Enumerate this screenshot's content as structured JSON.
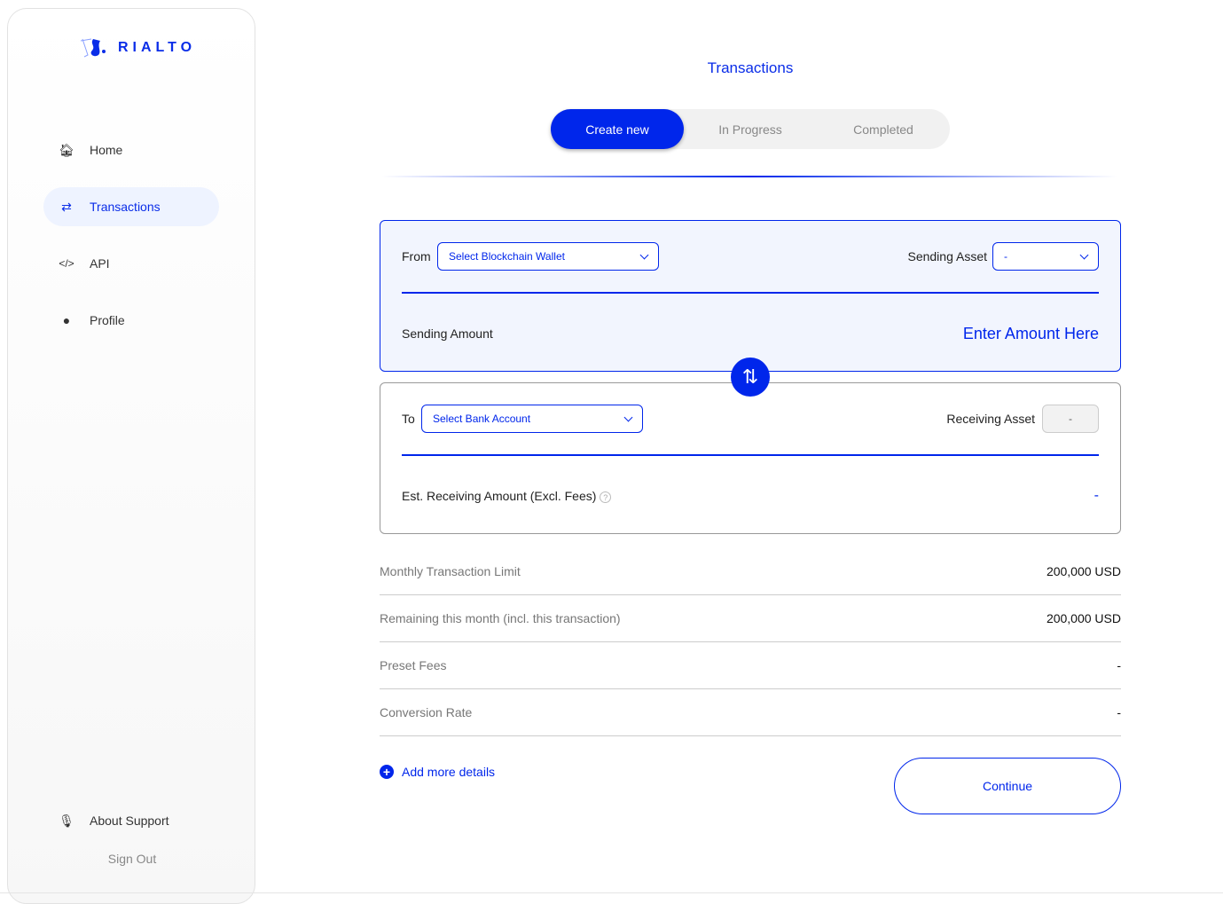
{
  "brand": {
    "name": "RIALTO",
    "accent": "#0026eb"
  },
  "sidebar": {
    "items": [
      {
        "label": "Home",
        "icon": "home-icon"
      },
      {
        "label": "Transactions",
        "icon": "swap-arrows-icon",
        "active": true
      },
      {
        "label": "API",
        "icon": "code-icon"
      },
      {
        "label": "Profile",
        "icon": "user-icon"
      }
    ],
    "support": {
      "label": "About Support",
      "icon": "microphone-icon"
    },
    "sign_out": "Sign Out"
  },
  "page": {
    "title": "Transactions",
    "tabs": [
      {
        "label": "Create new",
        "active": true
      },
      {
        "label": "In Progress"
      },
      {
        "label": "Completed"
      }
    ]
  },
  "from": {
    "label": "From",
    "wallet_placeholder": "Select Blockchain Wallet",
    "asset_label": "Sending Asset",
    "asset_value": "-",
    "amount_label": "Sending Amount",
    "amount_placeholder": "Enter Amount Here"
  },
  "to": {
    "label": "To",
    "account_placeholder": "Select Bank Account",
    "asset_label": "Receiving Asset",
    "asset_value": "-",
    "amount_label": "Est. Receiving Amount (Excl. Fees)",
    "amount_value": "-"
  },
  "summary": [
    {
      "label": "Monthly Transaction Limit",
      "value": "200,000 USD"
    },
    {
      "label": "Remaining this month (incl. this transaction)",
      "value": "200,000 USD"
    },
    {
      "label": "Preset Fees",
      "value": "-"
    },
    {
      "label": "Conversion Rate",
      "value": "-"
    }
  ],
  "actions": {
    "add_details": "Add more details",
    "continue": "Continue"
  }
}
